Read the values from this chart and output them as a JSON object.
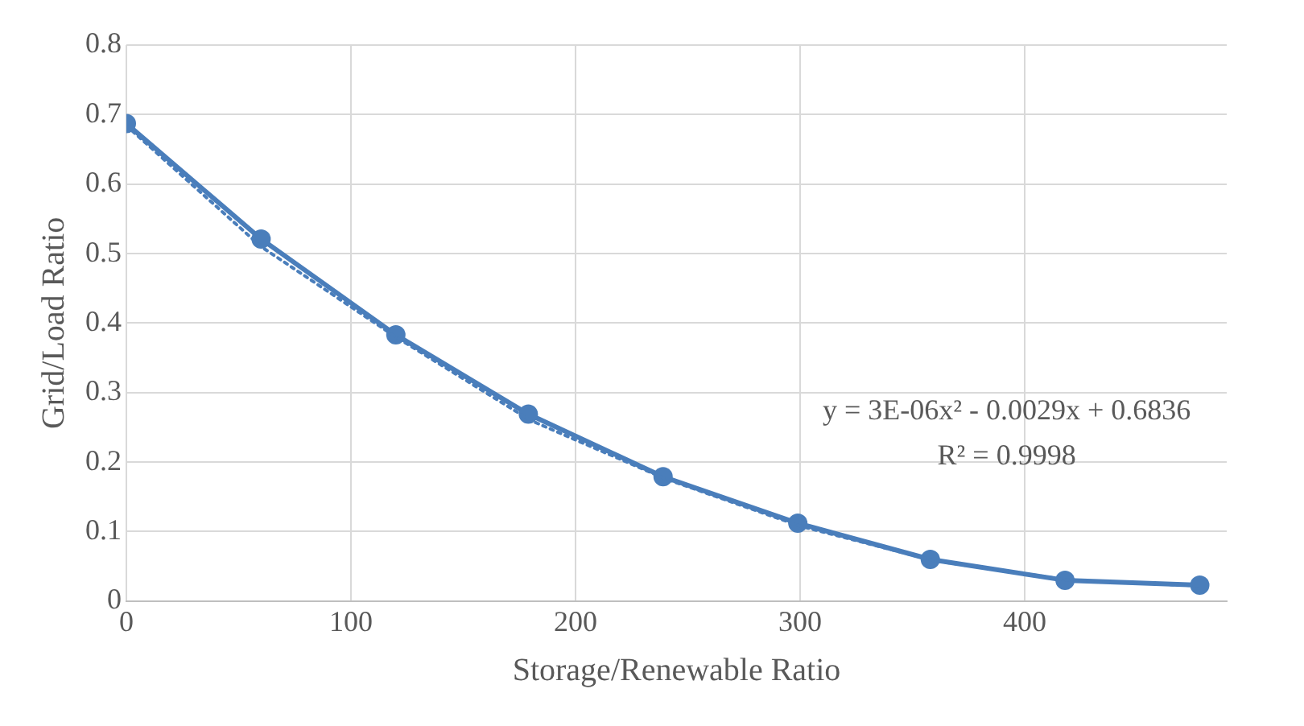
{
  "chart_data": {
    "type": "scatter",
    "xlabel": "Storage/Renewable Ratio",
    "ylabel": "Grid/Load Ratio",
    "xlim": [
      0,
      490
    ],
    "xticks": [
      0,
      100,
      200,
      300,
      400
    ],
    "ylim": [
      0,
      0.8
    ],
    "yticks": [
      0,
      0.1,
      0.2,
      0.3,
      0.4,
      0.5,
      0.6,
      0.7,
      0.8
    ],
    "grid": true,
    "legend": false,
    "marker": "circle",
    "line_style": "solid",
    "series": [
      {
        "type": "line",
        "color": "#4a7ebb",
        "x": [
          0,
          60,
          120,
          179,
          239,
          299,
          358,
          418,
          478
        ],
        "values": [
          0.687,
          0.521,
          0.383,
          0.269,
          0.179,
          0.112,
          0.06,
          0.03,
          0.023
        ]
      },
      {
        "type": "line",
        "color": "#4a7ebb",
        "line_style": "dotted",
        "marker": "none",
        "x": [
          0,
          60,
          120,
          180,
          240,
          300,
          360,
          420,
          478
        ],
        "values": [
          0.684,
          0.51,
          0.38,
          0.26,
          0.176,
          0.108,
          0.058,
          0.03,
          0.022
        ]
      }
    ],
    "annotations": [
      "y = 3E-06x² - 0.0029x + 0.6836",
      "R² = 0.9998"
    ]
  }
}
